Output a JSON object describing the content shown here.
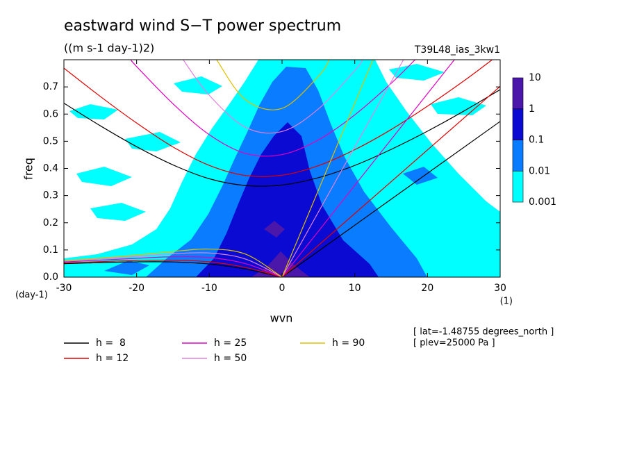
{
  "chart_data": {
    "type": "spectrum",
    "title": "eastward wind S−T power spectrum",
    "subtitle": "((m s-1 day-1)2)",
    "run_label": "T39L48_ias_3kw1",
    "x_label": "wvn",
    "y_label": "freq",
    "x_unit": "(1)",
    "y_unit": "(day-1)",
    "annotations": [
      "[ lat=-1.48755 degrees_north ]",
      "[ plev=25000 Pa ]"
    ],
    "xlim": [
      -30,
      30
    ],
    "ylim": [
      0,
      0.8
    ],
    "xticks": [
      -30,
      -20,
      -10,
      0,
      10,
      20,
      30
    ],
    "yticks": [
      {
        "value": 0,
        "label": "0.0"
      },
      0.1,
      0.2,
      0.3,
      0.4,
      0.5,
      0.6,
      0.7
    ],
    "colorbar": {
      "levels": [
        0.001,
        0.01,
        0.1,
        1,
        10
      ],
      "colors": [
        "#00ffff",
        "#0a7cff",
        "#0a0ad2",
        "#4b16aa"
      ]
    },
    "series": [
      {
        "name": "h =  8",
        "color": "#000000",
        "curves": [
          {
            "x": [
              0,
              30
            ],
            "values": [
              0,
              0.573
            ]
          },
          {
            "x": [
              -30,
              -25,
              -20,
              -15,
              -10,
              -5,
              0,
              5,
              10,
              15,
              20,
              25,
              30
            ],
            "values": [
              0.64,
              0.557,
              0.48,
              0.413,
              0.362,
              0.337,
              0.339,
              0.366,
              0.411,
              0.47,
              0.537,
              0.611,
              0.69
            ]
          },
          {
            "x": [
              -30,
              -25,
              -20,
              -15,
              -10,
              -5,
              0
            ],
            "values": [
              0.0495,
              0.0533,
              0.0561,
              0.0557,
              0.0483,
              0.0295,
              0
            ]
          }
        ]
      },
      {
        "name": "h = 12",
        "color": "#e00000",
        "curves": [
          {
            "x": [
              0,
              30
            ],
            "values": [
              0,
              0.702
            ]
          },
          {
            "x": [
              -30,
              -25,
              -20,
              -15,
              -10,
              -5,
              0,
              5,
              10,
              15,
              20,
              25,
              28.9
            ],
            "values": [
              0.769,
              0.665,
              0.567,
              0.479,
              0.411,
              0.374,
              0.375,
              0.41,
              0.469,
              0.543,
              0.629,
              0.722,
              0.8
            ]
          },
          {
            "x": [
              -30,
              -25,
              -20,
              -15,
              -10,
              -5,
              0
            ],
            "values": [
              0.052,
              0.0569,
              0.0611,
              0.0625,
              0.0562,
              0.0356,
              0
            ]
          }
        ]
      },
      {
        "name": "h = 25",
        "color": "#e000c0",
        "curves": [
          {
            "x": [
              0,
              23.7
            ],
            "values": [
              0,
              0.8
            ]
          },
          {
            "x": [
              -20.8,
              -20,
              -15,
              -10,
              -5,
              0,
              5,
              10,
              15,
              18.3
            ],
            "values": [
              0.8,
              0.775,
              0.638,
              0.524,
              0.455,
              0.451,
              0.505,
              0.597,
              0.713,
              0.8
            ]
          },
          {
            "x": [
              -30,
              -25,
              -20,
              -15,
              -10,
              -5,
              0
            ],
            "values": [
              0.0558,
              0.0624,
              0.0694,
              0.0747,
              0.0722,
              0.0494,
              0
            ]
          }
        ]
      },
      {
        "name": "h = 50",
        "color": "#e080e0",
        "curves": [
          {
            "x": [
              0,
              16.7
            ],
            "values": [
              0,
              0.8
            ]
          },
          {
            "x": [
              -13.6,
              -10,
              -5,
              0,
              5,
              10,
              11.1
            ],
            "values": [
              0.8,
              0.669,
              0.551,
              0.536,
              0.619,
              0.76,
              0.8
            ]
          },
          {
            "x": [
              -30,
              -25,
              -20,
              -15,
              -10,
              -5,
              0
            ],
            "values": [
              0.0587,
              0.0668,
              0.0763,
              0.0857,
              0.0888,
              0.0664,
              0
            ]
          }
        ]
      },
      {
        "name": "h = 90",
        "color": "#e0c000",
        "curves": [
          {
            "x": [
              0,
              12.5
            ],
            "values": [
              0,
              0.8
            ]
          },
          {
            "x": [
              -9.0,
              -5,
              0,
              5,
              6.5
            ],
            "values": [
              0.8,
              0.652,
              0.621,
              0.739,
              0.8
            ]
          },
          {
            "x": [
              -30,
              -25,
              -20,
              -15,
              -10,
              -5,
              0
            ],
            "values": [
              0.0605,
              0.0697,
              0.0812,
              0.0943,
              0.1034,
              0.0844,
              0
            ]
          }
        ]
      }
    ]
  }
}
